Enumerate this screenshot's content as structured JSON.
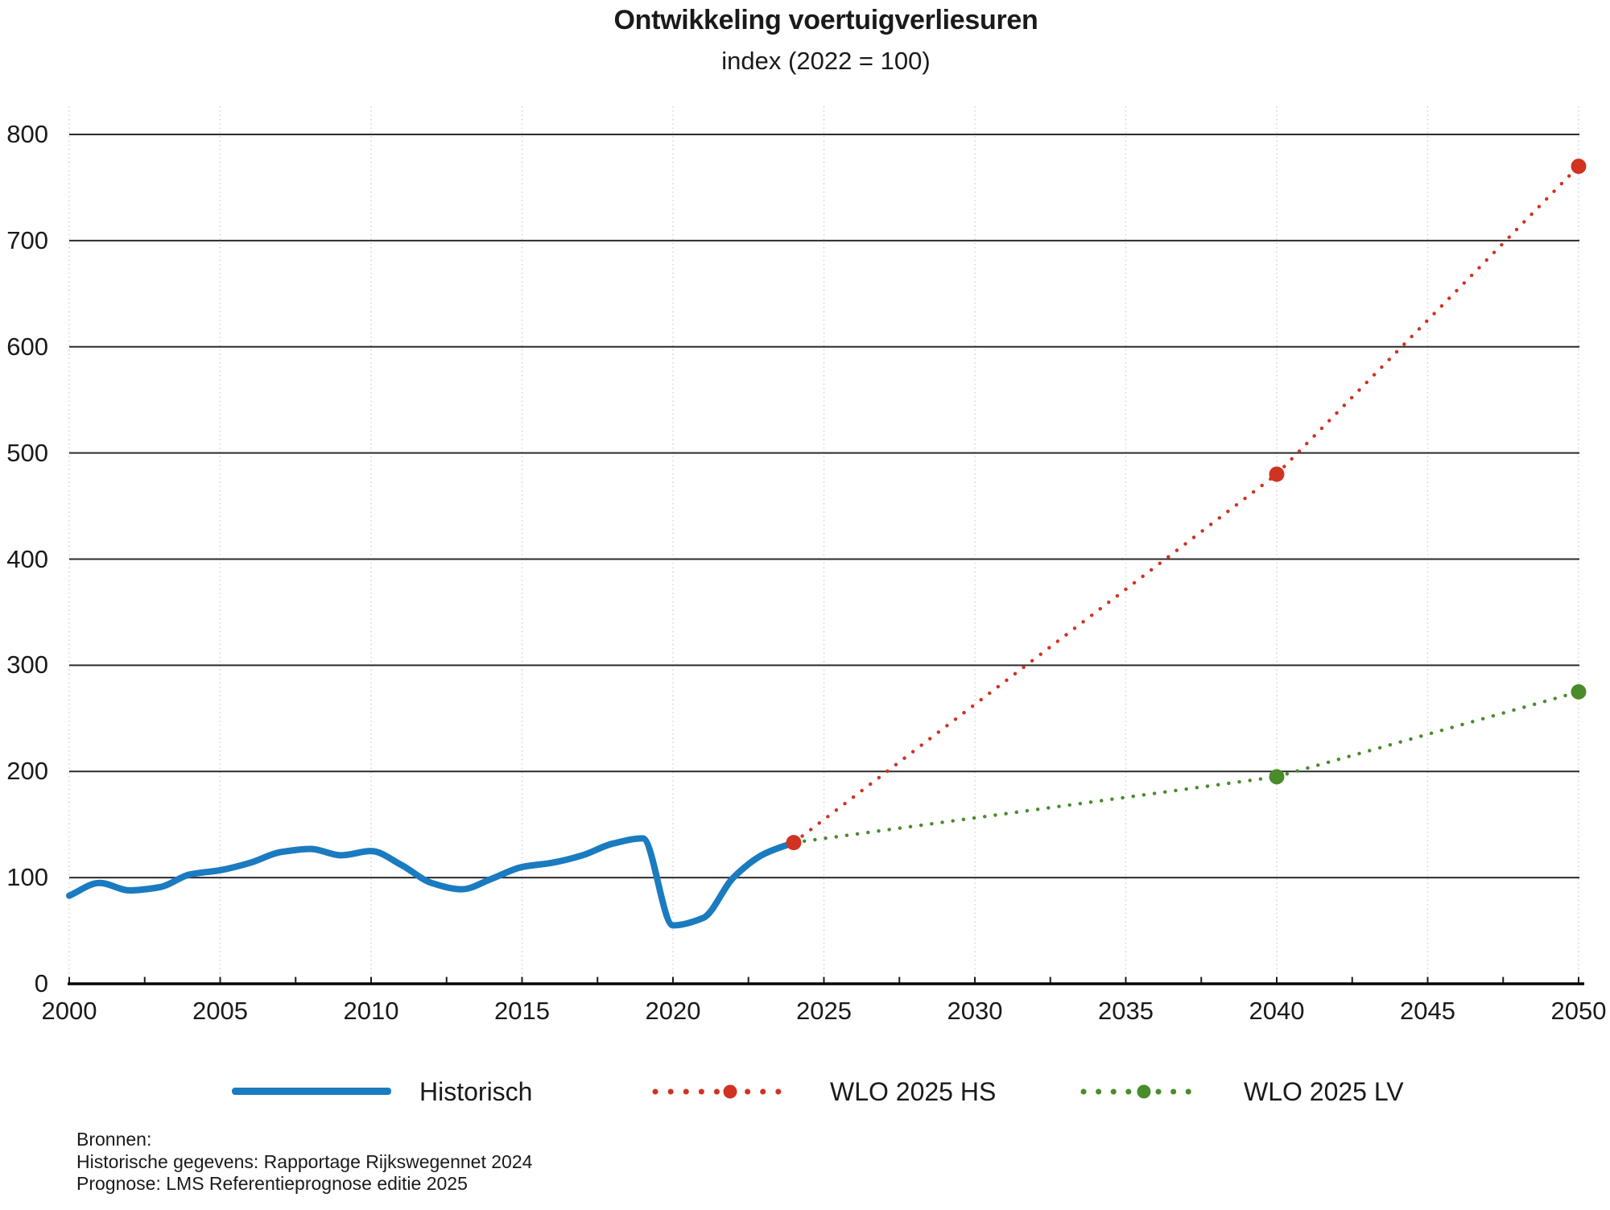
{
  "title": "Ontwikkeling voertuigverliesuren",
  "subtitle": "index (2022 = 100)",
  "legend": [
    {
      "label": "Historisch",
      "color": "#1a7bc0",
      "style": "solid"
    },
    {
      "label": "WLO 2025 HS",
      "color": "#d13322",
      "style": "dotted"
    },
    {
      "label": "WLO 2025 LV",
      "color": "#4a8b2c",
      "style": "dotted"
    }
  ],
  "sources": [
    "Bronnen:",
    "Historische gegevens: Rapportage Rijkswegennet 2024",
    "Prognose: LMS Referentieprognose editie 2025"
  ],
  "colors": {
    "text": "#1a1a1a",
    "grid_horizontal": "#2b2b2b",
    "grid_vertical": "#c7c7c7",
    "axis": "#000000",
    "background": "#ffffff"
  },
  "chart_data": {
    "type": "line",
    "title": "Ontwikkeling voertuigverliesuren",
    "subtitle": "index (2022 = 100)",
    "xlabel": "",
    "ylabel": "index (2022 = 100)",
    "xlim": [
      2000,
      2050
    ],
    "ylim": [
      0,
      820
    ],
    "x_ticks": [
      2000,
      2005,
      2010,
      2015,
      2020,
      2025,
      2030,
      2035,
      2040,
      2045,
      2050
    ],
    "y_ticks": [
      0,
      100,
      200,
      300,
      400,
      500,
      600,
      700,
      800
    ],
    "grid": {
      "horizontal": "solid",
      "vertical": "dotted",
      "minor_x_tick_step": 2.5
    },
    "legend_position": "bottom",
    "series": [
      {
        "name": "Historisch",
        "type": "line",
        "style": "solid",
        "color": "#1a7bc0",
        "x": [
          2000,
          2001,
          2002,
          2003,
          2004,
          2005,
          2006,
          2007,
          2008,
          2009,
          2010,
          2011,
          2012,
          2013,
          2014,
          2015,
          2016,
          2017,
          2018,
          2019,
          2020,
          2021,
          2022,
          2023,
          2024
        ],
        "values": [
          83,
          95,
          88,
          91,
          103,
          107,
          114,
          124,
          127,
          121,
          125,
          112,
          95,
          89,
          99,
          110,
          114,
          121,
          132,
          137,
          55,
          62,
          100,
          122,
          133
        ]
      },
      {
        "name": "WLO 2025 HS",
        "type": "line",
        "style": "dotted",
        "color": "#d13322",
        "x": [
          2024,
          2040,
          2050
        ],
        "values": [
          133,
          480,
          770
        ],
        "marker_x": [
          2024,
          2040,
          2050
        ]
      },
      {
        "name": "WLO 2025 LV",
        "type": "line",
        "style": "dotted",
        "color": "#4a8b2c",
        "x": [
          2024,
          2040,
          2050
        ],
        "values": [
          133,
          195,
          275
        ],
        "marker_x": [
          2040,
          2050
        ]
      }
    ]
  }
}
